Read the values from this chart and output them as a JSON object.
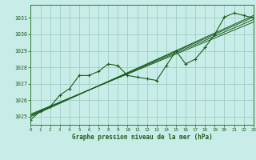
{
  "title": "Graphe pression niveau de la mer (hPa)",
  "bg_color": "#c8ede8",
  "grid_color": "#9dccc5",
  "line_color": "#1a5c1a",
  "spine_color": "#2d7a2d",
  "x_min": 0,
  "x_max": 23,
  "y_min": 1024.5,
  "y_max": 1031.8,
  "y_ticks": [
    1025,
    1026,
    1027,
    1028,
    1029,
    1030,
    1031
  ],
  "x_ticks": [
    0,
    1,
    2,
    3,
    4,
    5,
    6,
    7,
    8,
    9,
    10,
    11,
    12,
    13,
    14,
    15,
    16,
    17,
    18,
    19,
    20,
    21,
    22,
    23
  ],
  "measured_x": [
    0,
    1,
    2,
    3,
    4,
    5,
    6,
    7,
    8,
    9,
    10,
    11,
    12,
    13,
    14,
    15,
    16,
    17,
    18,
    19,
    20,
    21,
    22,
    23
  ],
  "measured_y": [
    1024.8,
    1025.35,
    1025.6,
    1026.3,
    1026.7,
    1027.5,
    1027.5,
    1027.75,
    1028.2,
    1028.1,
    1027.5,
    1027.4,
    1027.3,
    1027.2,
    1028.1,
    1029.0,
    1028.2,
    1028.5,
    1029.2,
    1030.0,
    1031.05,
    1031.3,
    1031.15,
    1031.0
  ],
  "trend1_x": [
    0,
    23
  ],
  "trend1_y": [
    1025.0,
    1031.15
  ],
  "trend2_x": [
    0,
    23
  ],
  "trend2_y": [
    1025.05,
    1031.05
  ],
  "trend3_x": [
    0,
    23
  ],
  "trend3_y": [
    1025.1,
    1030.9
  ],
  "trend4_x": [
    0,
    23
  ],
  "trend4_y": [
    1025.15,
    1030.75
  ]
}
